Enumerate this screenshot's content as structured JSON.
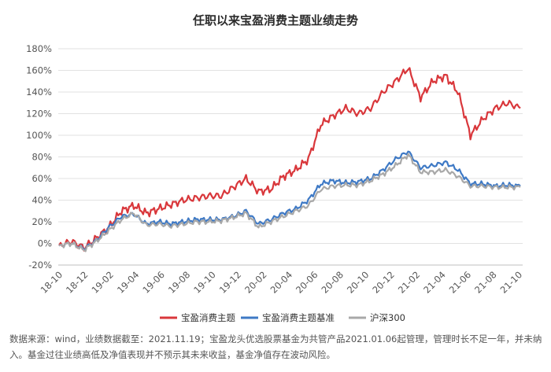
{
  "chart_data": {
    "type": "line",
    "title": "任职以来宝盈消费主题业绩走势",
    "xlabel": "",
    "ylabel": "",
    "x_tick_labels": [
      "18-10",
      "18-12",
      "19-02",
      "19-04",
      "19-06",
      "19-08",
      "19-10",
      "19-12",
      "20-02",
      "20-04",
      "20-06",
      "20-08",
      "20-10",
      "20-12",
      "21-02",
      "21-04",
      "21-06",
      "21-08",
      "21-10"
    ],
    "y_tick_labels": [
      "-20%",
      "0%",
      "20%",
      "40%",
      "60%",
      "80%",
      "100%",
      "120%",
      "140%",
      "160%",
      "180%"
    ],
    "ylim": [
      -20,
      180
    ],
    "grid": true,
    "legend_position": "bottom",
    "x": [
      "18-10",
      "18-11",
      "18-12",
      "19-01",
      "19-02",
      "19-03",
      "19-04",
      "19-05",
      "19-06",
      "19-07",
      "19-08",
      "19-09",
      "19-10",
      "19-11",
      "19-12",
      "20-01",
      "20-02",
      "20-03",
      "20-04",
      "20-05",
      "20-06",
      "20-07",
      "20-08",
      "20-09",
      "20-10",
      "20-11",
      "20-12",
      "21-01",
      "21-02",
      "21-03",
      "21-04",
      "21-05",
      "21-06",
      "21-07",
      "21-08",
      "21-09",
      "21-10",
      "21-11"
    ],
    "series": [
      {
        "name": "宝盈消费主题",
        "color": "#d9373b",
        "values": [
          -2,
          2,
          -4,
          5,
          15,
          30,
          35,
          28,
          32,
          36,
          40,
          42,
          44,
          44,
          52,
          60,
          48,
          50,
          62,
          68,
          78,
          110,
          118,
          125,
          120,
          125,
          140,
          150,
          162,
          135,
          150,
          155,
          140,
          100,
          115,
          125,
          130,
          125
        ]
      },
      {
        "name": "宝盈消费主题基准",
        "color": "#3e79c5",
        "values": [
          -2,
          0,
          -5,
          3,
          15,
          25,
          27,
          18,
          20,
          18,
          20,
          22,
          22,
          22,
          25,
          30,
          18,
          22,
          28,
          32,
          40,
          55,
          58,
          56,
          57,
          60,
          68,
          78,
          85,
          70,
          72,
          75,
          68,
          55,
          55,
          53,
          54,
          53
        ]
      },
      {
        "name": "沪深300",
        "color": "#a8a8a8",
        "values": [
          -2,
          0,
          -6,
          2,
          12,
          22,
          28,
          17,
          18,
          16,
          18,
          20,
          20,
          21,
          24,
          28,
          15,
          20,
          25,
          30,
          35,
          50,
          53,
          54,
          54,
          58,
          64,
          72,
          82,
          66,
          66,
          68,
          62,
          53,
          53,
          52,
          52,
          52
        ]
      }
    ]
  },
  "footnote": "数据来源：wind，业绩数据截至：2021.11.19；宝盈龙头优选股票基金为共管产品2021.01.06起管理，管理时长不足一年，并未纳入。基金过往业绩高低及净值表现并不预示其未来收益，基金净值存在波动风险。"
}
